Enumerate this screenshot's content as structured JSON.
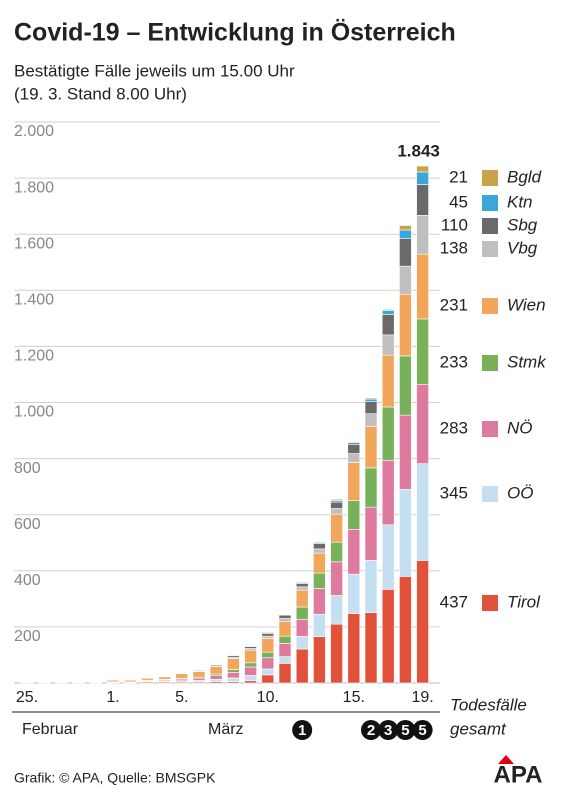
{
  "chart_data": {
    "type": "stacked_bar",
    "title": "Covid-19 – Entwicklung in Österreich",
    "subtitle": [
      "Bestätigte Fälle jeweils um 15.00 Uhr",
      "(19. 3. Stand 8.00 Uhr)"
    ],
    "categories": [
      "25.",
      null,
      null,
      null,
      null,
      "1.",
      null,
      null,
      null,
      "5.",
      null,
      null,
      null,
      null,
      "10.",
      null,
      null,
      null,
      null,
      "15.",
      null,
      null,
      null,
      "19."
    ],
    "months": [
      "Februar",
      "März"
    ],
    "series": [
      {
        "name": "Tirol",
        "color": "#e2513a",
        "values": [
          2,
          2,
          2,
          2,
          2,
          2,
          2,
          4,
          4,
          4,
          4,
          5,
          5,
          8,
          29,
          70,
          121,
          165,
          210,
          248,
          251,
          334,
          380,
          437
        ]
      },
      {
        "name": "OÖ",
        "color": "#c5dff2",
        "values": [
          0,
          0,
          0,
          0,
          0,
          1,
          1,
          2,
          3,
          4,
          5,
          8,
          13,
          19,
          21,
          24,
          45,
          80,
          102,
          140,
          186,
          230,
          310,
          345
        ]
      },
      {
        "name": "NÖ",
        "color": "#dd7a9d",
        "values": [
          0,
          0,
          0,
          0,
          1,
          1,
          1,
          3,
          4,
          6,
          8,
          13,
          20,
          30,
          40,
          47,
          60,
          92,
          120,
          160,
          190,
          230,
          265,
          283
        ]
      },
      {
        "name": "Stmk",
        "color": "#79b15a",
        "values": [
          0,
          0,
          0,
          0,
          0,
          0,
          0,
          1,
          2,
          3,
          4,
          6,
          10,
          15,
          20,
          26,
          45,
          55,
          70,
          103,
          140,
          190,
          211,
          233
        ]
      },
      {
        "name": "Wien",
        "color": "#f2a65a",
        "values": [
          0,
          0,
          1,
          1,
          2,
          6,
          6,
          7,
          9,
          16,
          20,
          26,
          39,
          45,
          49,
          53,
          60,
          71,
          100,
          135,
          148,
          185,
          220,
          231
        ]
      },
      {
        "name": "Vbg",
        "color": "#bfbfbf",
        "values": [
          0,
          0,
          0,
          0,
          0,
          0,
          0,
          0,
          0,
          1,
          2,
          3,
          5,
          6,
          8,
          10,
          12,
          15,
          20,
          32,
          45,
          72,
          100,
          138
        ]
      },
      {
        "name": "Sbg",
        "color": "#6a6a6a",
        "values": [
          0,
          0,
          0,
          0,
          0,
          0,
          0,
          1,
          1,
          2,
          3,
          4,
          6,
          7,
          10,
          12,
          12,
          19,
          23,
          33,
          43,
          73,
          98,
          110
        ]
      },
      {
        "name": "Ktn",
        "color": "#3aa7d8",
        "values": [
          0,
          0,
          0,
          0,
          0,
          0,
          0,
          0,
          1,
          1,
          1,
          1,
          1,
          1,
          2,
          2,
          3,
          4,
          6,
          6,
          9,
          14,
          31,
          45
        ]
      },
      {
        "name": "Bgld",
        "color": "#c9a24a",
        "values": [
          0,
          0,
          0,
          0,
          0,
          0,
          0,
          0,
          0,
          0,
          0,
          0,
          0,
          0,
          3,
          2,
          3,
          3,
          4,
          3,
          4,
          4,
          16,
          21
        ]
      }
    ],
    "annotations": [
      "1.843"
    ],
    "deaths_label": [
      "Todesfälle",
      "gesamt"
    ],
    "deaths": [
      null,
      null,
      null,
      null,
      null,
      null,
      null,
      null,
      null,
      null,
      null,
      null,
      null,
      null,
      null,
      null,
      1,
      null,
      null,
      null,
      2,
      3,
      5,
      5
    ],
    "ylim": [
      0,
      2000
    ],
    "yticks": [
      200,
      400,
      600,
      800,
      {
        "value": 1000,
        "label": "1.000"
      },
      {
        "value": 1200,
        "label": "1.200"
      },
      {
        "value": 1400,
        "label": "1.400"
      },
      {
        "value": 1600,
        "label": "1.600"
      },
      {
        "value": 1800,
        "label": "1.800"
      },
      {
        "value": 2000,
        "label": "2.000"
      }
    ],
    "grid": true,
    "source": "Grafik: © APA, Quelle: BMSGPK",
    "logo": "APA"
  }
}
